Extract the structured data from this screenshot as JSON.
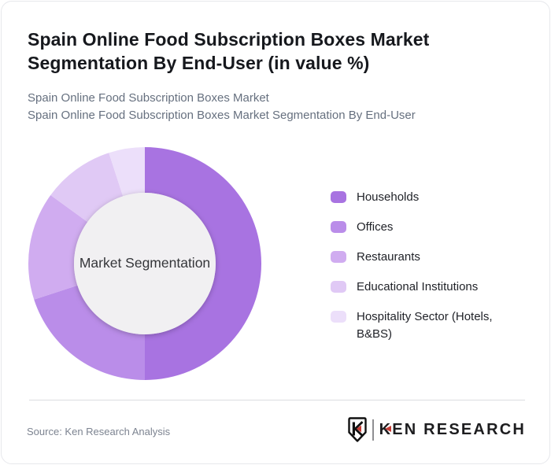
{
  "header": {
    "title_line1": "Spain Online Food Subscription Boxes Market",
    "title_line2": "Segmentation By End-User (in value %)",
    "subtitle_line1": "Spain Online Food Subscription Boxes Market",
    "subtitle_line2": "Spain Online Food Subscription Boxes Market Segmentation By End-User"
  },
  "chart_data": {
    "type": "pie",
    "variant": "donut",
    "title": "Spain Online Food Subscription Boxes Market Segmentation By End-User (in value %)",
    "center_label": "Market Segmentation",
    "unit": "%",
    "direction": "clockwise",
    "start_angle_deg": 0,
    "legend_position": "right",
    "labels": [
      "Households",
      "Offices",
      "Restaurants",
      "Educational Institutions",
      "Hospitality Sector (Hotels, B&BS)"
    ],
    "values": [
      50,
      20,
      15,
      10,
      5
    ],
    "colors": [
      "#a873e1",
      "#ba8de9",
      "#d0acf0",
      "#e0c9f5",
      "#ecdffa"
    ],
    "center_fill": "#f1f0f2"
  },
  "footer": {
    "source": "Source: Ken Research Analysis",
    "brand_name": "KEN RESEARCH",
    "brand_monogram": "K",
    "brand_red": "#c63d36",
    "brand_dark": "#1d1d1f"
  }
}
